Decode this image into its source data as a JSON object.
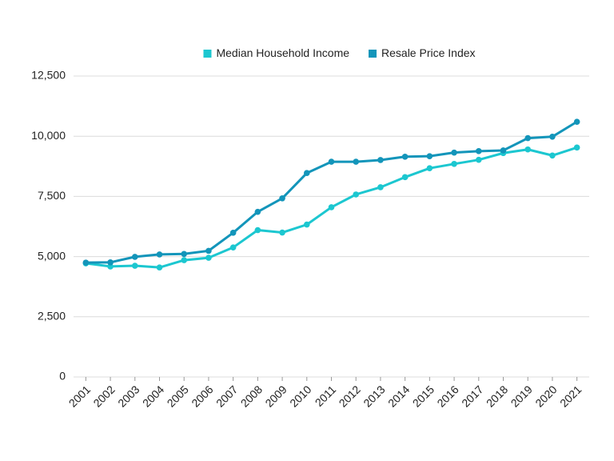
{
  "chart_data": {
    "type": "line",
    "categories": [
      "2001",
      "2002",
      "2003",
      "2004",
      "2005",
      "2006",
      "2007",
      "2008",
      "2009",
      "2010",
      "2011",
      "2012",
      "2013",
      "2014",
      "2015",
      "2016",
      "2017",
      "2018",
      "2019",
      "2020",
      "2021"
    ],
    "series": [
      {
        "name": "Median Household Income",
        "color": "#1cc7d0",
        "values": [
          4720,
          4590,
          4620,
          4550,
          4850,
          4950,
          5380,
          6100,
          6000,
          6330,
          7050,
          7580,
          7880,
          8300,
          8670,
          8850,
          9020,
          9300,
          9450,
          9200,
          9530
        ]
      },
      {
        "name": "Resale Price Index",
        "color": "#1395ba",
        "values": [
          4750,
          4760,
          4990,
          5090,
          5110,
          5240,
          5990,
          6860,
          7420,
          8470,
          8940,
          8940,
          9010,
          9150,
          9170,
          9320,
          9380,
          9410,
          9920,
          9980,
          10600
        ]
      }
    ],
    "ylim": [
      0,
      12500
    ],
    "yticks": [
      0,
      {
        "value": 2500,
        "label": "2,500"
      },
      {
        "value": 5000,
        "label": "5,000"
      },
      {
        "value": 7500,
        "label": "7,500"
      },
      {
        "value": 10000,
        "label": "10,000"
      },
      {
        "value": 12500,
        "label": "12,500"
      }
    ],
    "grid": true,
    "legend": "top"
  }
}
